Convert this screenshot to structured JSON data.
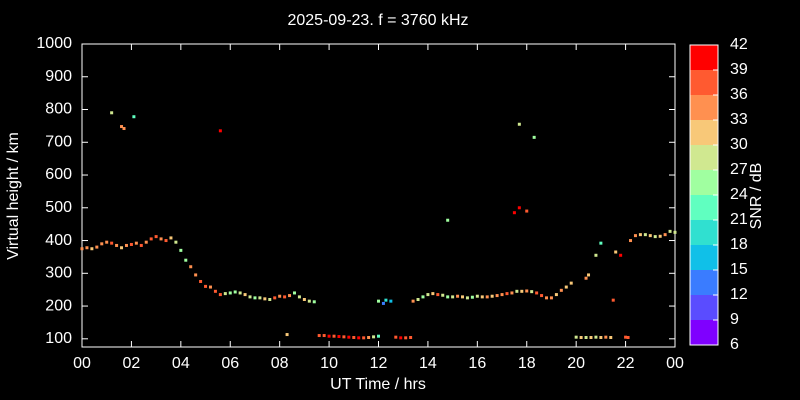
{
  "chart_data": {
    "type": "scatter",
    "title": "2025-09-23. f = 3760 kHz",
    "x_label": "UT Time / hrs",
    "y_label": "Virtual height / km",
    "xlim": [
      0,
      24
    ],
    "ylim": [
      75,
      1000
    ],
    "xticks": [
      {
        "value": 0,
        "label": "00"
      },
      {
        "value": 2,
        "label": "02"
      },
      {
        "value": 4,
        "label": "04"
      },
      {
        "value": 6,
        "label": "06"
      },
      {
        "value": 8,
        "label": "08"
      },
      10,
      12,
      14,
      16,
      18,
      20,
      22,
      {
        "value": 24,
        "label": "00"
      }
    ],
    "yticks": [
      100,
      200,
      300,
      400,
      500,
      600,
      700,
      800,
      900,
      1000
    ],
    "colorbar": {
      "label": "SNR / dB",
      "lim": [
        6,
        42
      ],
      "ticks": [
        6,
        9,
        12,
        15,
        18,
        21,
        24,
        27,
        30,
        33,
        36,
        39,
        42
      ],
      "colors": [
        "#7f00ff",
        "#5a4cff",
        "#3a7cff",
        "#10c0e8",
        "#30e0d0",
        "#60ffc0",
        "#a0ffa0",
        "#d0e890",
        "#f8c878",
        "#ff9050",
        "#ff5a30",
        "#ff0000"
      ]
    },
    "x": [
      0.0,
      0.2,
      0.4,
      0.6,
      0.8,
      1.0,
      1.2,
      1.4,
      1.6,
      1.8,
      2.0,
      2.2,
      2.4,
      2.6,
      2.8,
      3.0,
      3.2,
      3.4,
      3.6,
      3.8,
      4.0,
      4.2,
      4.4,
      4.6,
      4.8,
      5.0,
      5.2,
      5.4,
      5.6,
      5.8,
      6.0,
      6.2,
      6.4,
      6.6,
      6.8,
      7.0,
      7.2,
      7.4,
      7.6,
      7.8,
      8.0,
      8.2,
      8.4,
      8.6,
      8.8,
      9.0,
      9.2,
      9.4,
      1.2,
      1.6,
      1.7,
      2.1,
      5.6,
      8.3,
      9.6,
      9.8,
      10.0,
      10.2,
      10.4,
      10.6,
      10.8,
      11.0,
      11.2,
      11.4,
      11.6,
      11.8,
      12.0,
      12.0,
      12.2,
      12.3,
      12.5,
      12.7,
      12.9,
      13.1,
      13.3,
      13.4,
      13.6,
      13.8,
      14.0,
      14.2,
      14.4,
      14.6,
      14.8,
      15.0,
      15.2,
      15.4,
      15.6,
      15.8,
      16.0,
      16.2,
      16.4,
      16.6,
      16.8,
      17.0,
      17.2,
      17.4,
      17.6,
      17.8,
      18.0,
      18.2,
      18.4,
      18.6,
      18.8,
      19.0,
      19.2,
      19.4,
      19.6,
      19.8,
      14.8,
      17.5,
      17.7,
      18.0,
      17.7,
      18.3,
      20.4,
      20.5,
      21.0,
      20.8,
      21.5,
      21.6,
      21.8,
      22.0,
      22.1,
      20.0,
      20.2,
      20.4,
      20.6,
      20.8,
      21.0,
      21.2,
      21.4,
      22.2,
      22.4,
      22.6,
      22.8,
      23.0,
      23.2,
      23.4,
      23.6,
      23.8,
      24.0
    ],
    "values": [
      375,
      378,
      375,
      380,
      390,
      395,
      392,
      385,
      378,
      385,
      388,
      392,
      385,
      395,
      405,
      412,
      405,
      400,
      408,
      395,
      370,
      340,
      320,
      295,
      275,
      260,
      258,
      245,
      235,
      238,
      240,
      243,
      240,
      235,
      228,
      225,
      225,
      222,
      220,
      225,
      230,
      228,
      232,
      240,
      228,
      220,
      215,
      213,
      790,
      748,
      742,
      778,
      735,
      113,
      110,
      110,
      108,
      108,
      107,
      106,
      105,
      104,
      103,
      103,
      104,
      106,
      108,
      215,
      208,
      218,
      215,
      105,
      103,
      103,
      104,
      215,
      220,
      228,
      235,
      238,
      235,
      233,
      228,
      228,
      230,
      228,
      225,
      227,
      230,
      228,
      228,
      230,
      232,
      235,
      238,
      240,
      245,
      245,
      246,
      244,
      240,
      232,
      225,
      225,
      235,
      248,
      258,
      270,
      462,
      485,
      500,
      490,
      755,
      715,
      285,
      295,
      392,
      355,
      218,
      365,
      355,
      105,
      104,
      105,
      104,
      104,
      104,
      105,
      104,
      105,
      104,
      400,
      415,
      418,
      418,
      415,
      412,
      413,
      418,
      428,
      425
    ],
    "snr": [
      33,
      33,
      30,
      33,
      33,
      33,
      36,
      33,
      30,
      33,
      36,
      33,
      36,
      33,
      36,
      36,
      33,
      36,
      30,
      27,
      24,
      24,
      33,
      33,
      36,
      36,
      33,
      36,
      36,
      27,
      24,
      24,
      27,
      30,
      27,
      24,
      27,
      30,
      27,
      36,
      33,
      36,
      33,
      24,
      27,
      30,
      27,
      24,
      27,
      33,
      33,
      21,
      39,
      30,
      36,
      36,
      39,
      36,
      39,
      36,
      39,
      36,
      39,
      36,
      33,
      27,
      21,
      24,
      12,
      18,
      15,
      36,
      39,
      36,
      36,
      33,
      27,
      24,
      27,
      30,
      36,
      27,
      24,
      27,
      33,
      30,
      27,
      24,
      27,
      30,
      33,
      30,
      33,
      33,
      36,
      33,
      27,
      30,
      33,
      27,
      36,
      36,
      33,
      33,
      30,
      33,
      30,
      30,
      24,
      39,
      39,
      36,
      27,
      24,
      33,
      30,
      21,
      27,
      36,
      30,
      39,
      36,
      36,
      27,
      30,
      27,
      30,
      27,
      30,
      33,
      30,
      33,
      33,
      30,
      27,
      30,
      27,
      30,
      33,
      27,
      27
    ]
  }
}
